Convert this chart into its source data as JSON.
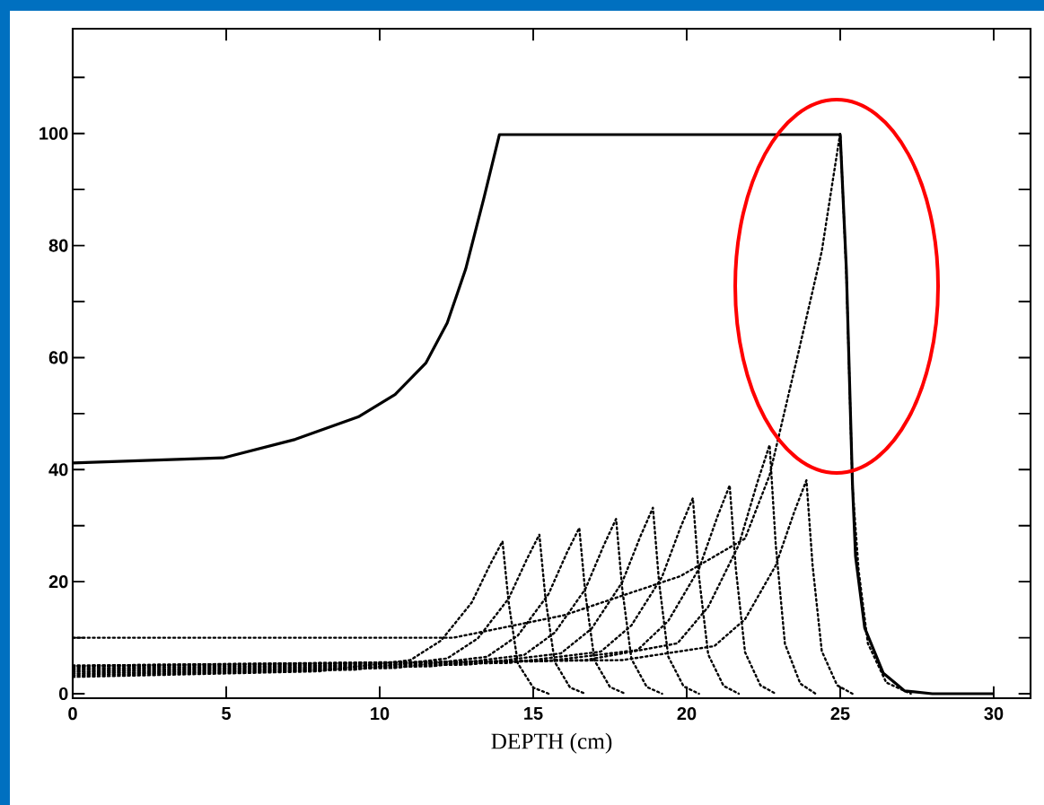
{
  "chart_data": {
    "type": "line",
    "xlabel": "DEPTH  (cm)",
    "xlim": [
      0,
      31.2
    ],
    "ylim": [
      -0.8,
      118.7
    ],
    "marker": "none",
    "xticks": [
      0,
      5,
      10,
      15,
      20,
      25,
      30
    ],
    "yticks": [
      0,
      {
        "value": 10,
        "label": null
      },
      20,
      {
        "value": 30,
        "label": null
      },
      40,
      {
        "value": 50,
        "label": null
      },
      60,
      {
        "value": 70,
        "label": null
      },
      80,
      {
        "value": 90,
        "label": null
      },
      100,
      {
        "value": 110,
        "label": null
      }
    ],
    "series": [
      {
        "color": "#000000",
        "line_style": "solid",
        "x": [
          0,
          4.9,
          7.25,
          9.3,
          10.5,
          11.5,
          12.2,
          12.8,
          13.4,
          13.9,
          25.0,
          25.2,
          25.4,
          25.5,
          25.8,
          26.4,
          27.1,
          28,
          30
        ],
        "values": [
          41.2,
          42.1,
          45.4,
          49.4,
          53.4,
          59,
          66.2,
          75.8,
          88.6,
          99.8,
          99.8,
          75.8,
          37.3,
          24.5,
          11.7,
          3.7,
          0.5,
          0,
          0
        ]
      },
      {
        "color": "#000000",
        "line_style": "dotted",
        "x": [
          0,
          8,
          11,
          12,
          13,
          13.6,
          14,
          14.2,
          14.5,
          15,
          15.5
        ],
        "values": [
          3,
          4,
          6,
          9.5,
          16.3,
          23.1,
          27.2,
          16.3,
          5.4,
          1.1,
          0
        ]
      },
      {
        "color": "#000000",
        "line_style": "dotted",
        "x": [
          0,
          9.2,
          12.2,
          13.2,
          14.2,
          14.8,
          15.2,
          15.4,
          15.7,
          16.2,
          16.7
        ],
        "values": [
          3.3,
          4.3,
          6.3,
          9.9,
          17,
          24.1,
          28.4,
          17,
          5.7,
          1.1,
          0
        ]
      },
      {
        "color": "#000000",
        "line_style": "dotted",
        "x": [
          0,
          10.5,
          13.5,
          14.5,
          15.5,
          16.1,
          16.5,
          16.7,
          17,
          17.5,
          18
        ],
        "values": [
          3.6,
          4.6,
          6.6,
          10.4,
          17.8,
          25.2,
          29.6,
          17.8,
          5.9,
          1.2,
          0
        ]
      },
      {
        "color": "#000000",
        "line_style": "dotted",
        "x": [
          0,
          11.7,
          14.7,
          15.7,
          16.7,
          17.3,
          17.7,
          17.9,
          18.2,
          18.7,
          19.2
        ],
        "values": [
          3.9,
          4.9,
          6.9,
          10.9,
          18.7,
          26.5,
          31.2,
          18.7,
          6.2,
          1.2,
          0
        ]
      },
      {
        "color": "#000000",
        "line_style": "dotted",
        "x": [
          0,
          12.9,
          15.9,
          16.9,
          17.9,
          18.5,
          18.9,
          19.1,
          19.4,
          19.9,
          20.4
        ],
        "values": [
          4.2,
          5.2,
          7.2,
          11.6,
          19.9,
          28.2,
          33.2,
          19.9,
          6.6,
          1.3,
          0
        ]
      },
      {
        "color": "#000000",
        "line_style": "dotted",
        "x": [
          0,
          14.2,
          17.2,
          18.2,
          19.2,
          19.8,
          20.2,
          20.4,
          20.7,
          21.2,
          21.7
        ],
        "values": [
          4.5,
          5.5,
          7.5,
          12.2,
          20.9,
          29.7,
          34.9,
          20.9,
          7,
          1.4,
          0
        ]
      },
      {
        "color": "#000000",
        "line_style": "dotted",
        "x": [
          0,
          15.4,
          18.4,
          19.4,
          20.4,
          21,
          21.4,
          21.6,
          21.9,
          22.4,
          22.9
        ],
        "values": [
          4.8,
          5.8,
          7.8,
          13,
          22.3,
          31.6,
          37.2,
          22.3,
          7.4,
          1.5,
          0
        ]
      },
      {
        "color": "#000000",
        "line_style": "dotted",
        "x": [
          0,
          16.7,
          19.7,
          20.7,
          21.7,
          22.3,
          22.7,
          22.9,
          23.2,
          23.7,
          24.2
        ],
        "values": [
          5,
          6,
          9,
          15.5,
          26.6,
          37.7,
          44.4,
          26.6,
          8.9,
          1.8,
          0
        ]
      },
      {
        "color": "#000000",
        "line_style": "dotted",
        "x": [
          0,
          17.9,
          20.9,
          21.9,
          22.9,
          23.5,
          23.9,
          24.1,
          24.4,
          24.9,
          25.4
        ],
        "values": [
          5,
          6,
          8.5,
          13.3,
          22.9,
          32.4,
          38.1,
          22.9,
          7.6,
          1.5,
          0
        ]
      },
      {
        "color": "#000000",
        "line_style": "dotted",
        "x": [
          0,
          12.4,
          16,
          19.8,
          21.9,
          22.7,
          23.6,
          24.4,
          24.9,
          25,
          25.2,
          25.4,
          25.6,
          25.9,
          26.5,
          27.3
        ],
        "values": [
          10,
          10,
          14,
          21,
          27.7,
          39,
          60,
          79,
          96.6,
          100,
          75,
          37,
          22,
          9,
          2,
          0
        ]
      }
    ]
  }
}
